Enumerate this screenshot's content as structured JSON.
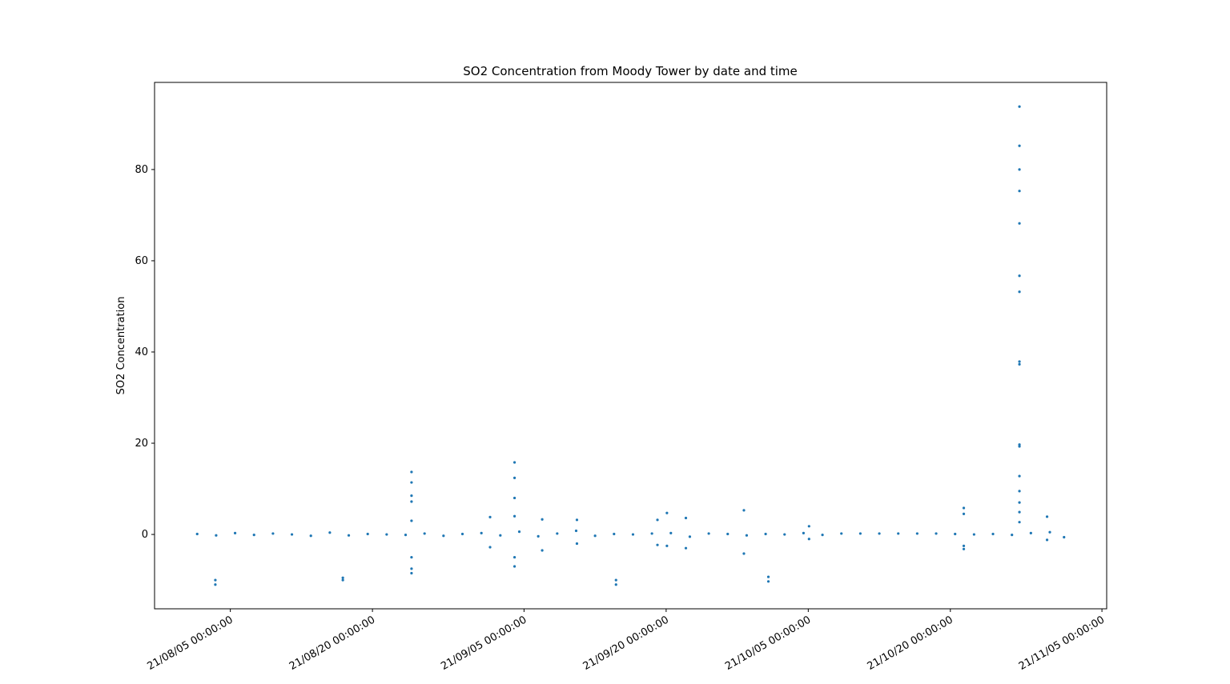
{
  "chart_data": {
    "type": "scatter",
    "title": "SO2 Concentration from Moody Tower by date and time",
    "y_label": "SO2 Concentration",
    "color": "#1f77b4",
    "x": [
      "2021-08-01 12:00:00",
      "2021-08-03 12:00:00",
      "2021-08-05 12:00:00",
      "2021-08-07 12:00:00",
      "2021-08-09 12:00:00",
      "2021-08-11 12:00:00",
      "2021-08-13 12:00:00",
      "2021-08-15 12:00:00",
      "2021-08-17 12:00:00",
      "2021-08-19 12:00:00",
      "2021-08-21 12:00:00",
      "2021-08-23 12:00:00",
      "2021-08-25 12:00:00",
      "2021-08-27 12:00:00",
      "2021-08-29 12:00:00",
      "2021-08-31 12:00:00",
      "2021-09-02 12:00:00",
      "2021-09-04 12:00:00",
      "2021-09-06 12:00:00",
      "2021-09-08 12:00:00",
      "2021-09-10 12:00:00",
      "2021-09-12 12:00:00",
      "2021-09-14 12:00:00",
      "2021-09-16 12:00:00",
      "2021-09-18 12:00:00",
      "2021-09-20 12:00:00",
      "2021-09-22 12:00:00",
      "2021-09-24 12:00:00",
      "2021-09-26 12:00:00",
      "2021-09-28 12:00:00",
      "2021-09-30 12:00:00",
      "2021-10-02 12:00:00",
      "2021-10-04 12:00:00",
      "2021-10-06 12:00:00",
      "2021-10-08 12:00:00",
      "2021-10-10 12:00:00",
      "2021-10-12 12:00:00",
      "2021-10-14 12:00:00",
      "2021-10-16 12:00:00",
      "2021-10-18 12:00:00",
      "2021-10-20 12:00:00",
      "2021-10-22 12:00:00",
      "2021-10-24 12:00:00",
      "2021-10-26 12:00:00",
      "2021-10-28 12:00:00",
      "2021-10-30 12:00:00",
      "2021-11-01 00:00:00",
      "2021-08-03 10:00:00",
      "2021-08-03 10:00:00",
      "2021-08-16 21:00:00",
      "2021-08-16 21:00:00",
      "2021-08-24 03:00:00",
      "2021-08-24 03:00:00",
      "2021-08-24 03:00:00",
      "2021-08-24 03:00:00",
      "2021-08-24 03:00:00",
      "2021-08-24 03:00:00",
      "2021-08-24 03:00:00",
      "2021-08-24 03:00:00",
      "2021-09-01 10:00:00",
      "2021-09-01 10:00:00",
      "2021-09-04 00:00:00",
      "2021-09-04 00:00:00",
      "2021-09-04 00:00:00",
      "2021-09-04 00:00:00",
      "2021-09-04 00:00:00",
      "2021-09-04 00:00:00",
      "2021-09-06 22:00:00",
      "2021-09-06 22:00:00",
      "2021-09-10 14:00:00",
      "2021-09-10 14:00:00",
      "2021-09-14 17:00:00",
      "2021-09-14 17:00:00",
      "2021-09-19 02:00:00",
      "2021-09-19 02:00:00",
      "2021-09-20 02:00:00",
      "2021-09-20 02:00:00",
      "2021-09-22 02:00:00",
      "2021-09-22 02:00:00",
      "2021-09-28 05:00:00",
      "2021-09-28 05:00:00",
      "2021-09-30 19:00:00",
      "2021-09-30 19:00:00",
      "2021-10-05 02:00:00",
      "2021-10-05 02:00:00",
      "2021-10-21 10:00:00",
      "2021-10-21 10:00:00",
      "2021-10-21 10:00:00",
      "2021-10-21 10:00:00",
      "2021-10-27 07:00:00",
      "2021-10-27 07:00:00",
      "2021-10-27 07:00:00",
      "2021-10-27 07:00:00",
      "2021-10-27 07:00:00",
      "2021-10-27 07:00:00",
      "2021-10-27 07:00:00",
      "2021-10-27 07:00:00",
      "2021-10-27 07:00:00",
      "2021-10-27 07:00:00",
      "2021-10-27 07:00:00",
      "2021-10-27 07:00:00",
      "2021-10-27 07:00:00",
      "2021-10-27 07:00:00",
      "2021-10-27 07:00:00",
      "2021-10-27 07:00:00",
      "2021-10-30 05:00:00",
      "2021-10-30 05:00:00"
    ],
    "values": [
      0.1,
      -0.2,
      0.3,
      -0.1,
      0.2,
      0,
      -0.3,
      0.4,
      -0.2,
      0.1,
      0,
      -0.1,
      0.2,
      -0.3,
      0.1,
      0.3,
      -0.2,
      0.6,
      -0.4,
      0.2,
      0.8,
      -0.3,
      0.1,
      0,
      0.2,
      0.3,
      -0.5,
      0.2,
      0.1,
      -0.2,
      0.1,
      0,
      0.3,
      -0.1,
      0.2,
      0.2,
      0.2,
      0.2,
      0.2,
      0.2,
      0.1,
      0,
      0.1,
      -0.1,
      0.3,
      0.5,
      -0.6,
      -10,
      -11,
      -9.5,
      -10,
      13.7,
      11.4,
      8.5,
      7.2,
      3,
      -5,
      -7.5,
      -8.5,
      3.8,
      -2.8,
      15.8,
      12.4,
      8,
      4,
      -5,
      -7,
      3.3,
      -3.5,
      3.2,
      -2,
      -10,
      -11,
      3.2,
      -2.3,
      4.7,
      -2.5,
      3.6,
      -3,
      5.3,
      -4.2,
      -9.3,
      -10.3,
      1.8,
      -1,
      5.8,
      4.5,
      -2.5,
      -3.2,
      93.8,
      85.2,
      80,
      75.3,
      68.2,
      56.7,
      53.2,
      37.9,
      37.3,
      19.7,
      19.3,
      12.8,
      9.5,
      7,
      4.9,
      2.7,
      3.9,
      -1.2
    ],
    "xlim": [
      "2021-07-28 00:00:00",
      "2021-11-05 12:00:00"
    ],
    "xticks": [
      {
        "value": "2021-08-05 00:00:00",
        "label": "21/08/05 00:00:00"
      },
      {
        "value": "2021-08-20 00:00:00",
        "label": "21/08/20 00:00:00"
      },
      {
        "value": "2021-09-05 00:00:00",
        "label": "21/09/05 00:00:00"
      },
      {
        "value": "2021-09-20 00:00:00",
        "label": "21/09/20 00:00:00"
      },
      {
        "value": "2021-10-05 00:00:00",
        "label": "21/10/05 00:00:00"
      },
      {
        "value": "2021-10-20 00:00:00",
        "label": "21/10/20 00:00:00"
      },
      {
        "value": "2021-11-05 00:00:00",
        "label": "21/11/05 00:00:00"
      }
    ],
    "ylim": [
      -16.3,
      99.1
    ],
    "yticks": [
      0,
      20,
      40,
      60,
      80
    ],
    "grid": false
  }
}
